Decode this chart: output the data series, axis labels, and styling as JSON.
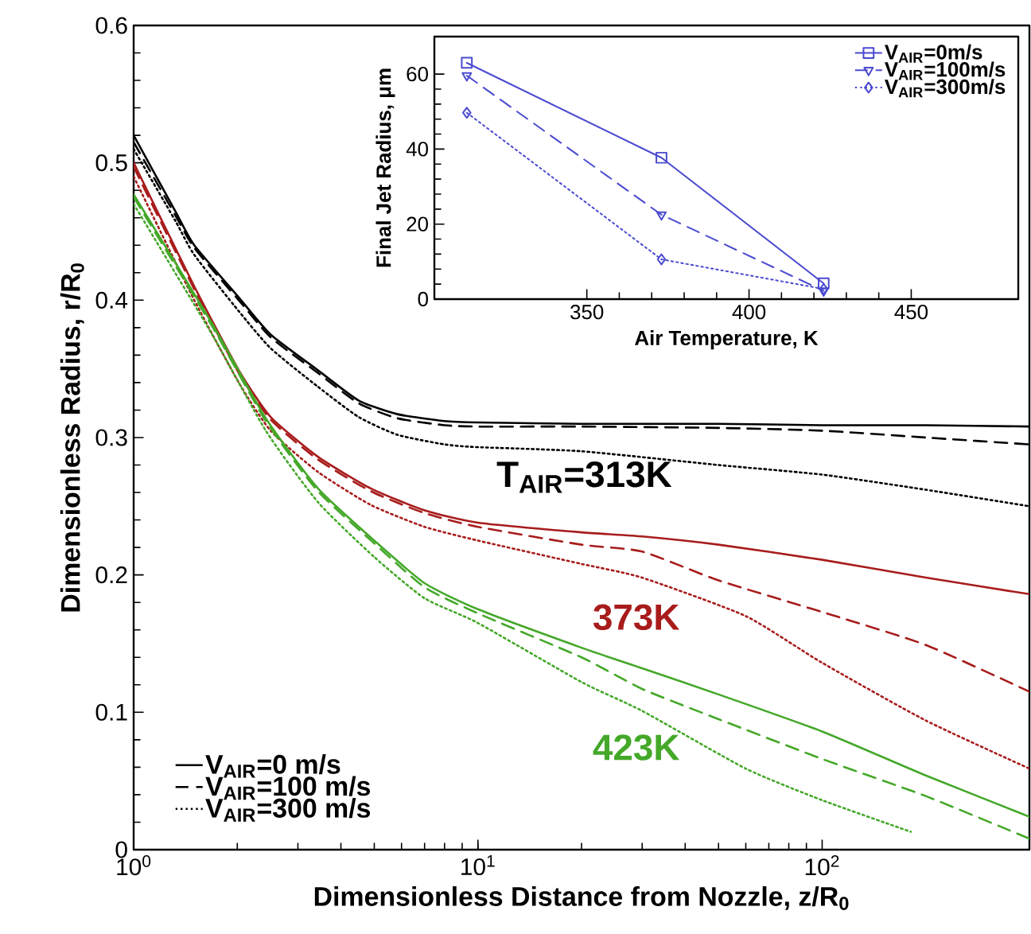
{
  "chart_data": [
    {
      "type": "line",
      "xlabel": "Dimensionless Distance from Nozzle, z/R$_{0}$",
      "ylabel": "Dimensionless Radius, r/R$_{0}$",
      "log": "x",
      "xlim": [
        1,
        400
      ],
      "ylim": [
        0,
        0.6
      ],
      "xticks": [
        {
          "value": 1,
          "label": "10$^{0}$"
        },
        {
          "value": 10,
          "label": "10$^{1}$"
        },
        {
          "value": 100,
          "label": "10$^{2}$"
        }
      ],
      "yticks": [
        0,
        0.1,
        0.2,
        0.3,
        0.4,
        0.5,
        0.6
      ],
      "legend": "bottom left",
      "annotations": [
        "T$_{AIR}$=313K",
        "373K",
        "423K"
      ],
      "series": [
        {
          "name": "V$_{AIR}$=0 m/s",
          "color": "#000000",
          "line_style": "solid",
          "x": [
            1,
            1.32,
            1.5,
            2.02,
            2.5,
            3.43,
            4.5,
            5.84,
            8,
            10,
            20,
            50,
            100,
            200,
            400
          ],
          "values": [
            0.52,
            0.465,
            0.44,
            0.402,
            0.375,
            0.349,
            0.327,
            0.317,
            0.312,
            0.311,
            0.31,
            0.31,
            0.309,
            0.309,
            0.308
          ]
        },
        {
          "name": "V$_{AIR}$=100 m/s",
          "color": "#000000",
          "line_style": "dashed",
          "x": [
            1,
            1.32,
            1.5,
            2.02,
            2.5,
            3.43,
            4.5,
            5.84,
            8,
            10,
            20,
            50,
            100,
            200,
            400
          ],
          "values": [
            0.515,
            0.462,
            0.438,
            0.4,
            0.373,
            0.347,
            0.325,
            0.314,
            0.309,
            0.308,
            0.308,
            0.307,
            0.305,
            0.3,
            0.295
          ]
        },
        {
          "name": "V$_{AIR}$=300 m/s",
          "color": "#000000",
          "line_style": "dotted",
          "x": [
            1,
            1.32,
            1.5,
            2.02,
            2.5,
            3.43,
            4.5,
            5.84,
            8,
            10,
            20,
            50,
            100,
            200,
            400
          ],
          "values": [
            0.51,
            0.458,
            0.433,
            0.392,
            0.365,
            0.337,
            0.315,
            0.302,
            0.295,
            0.293,
            0.29,
            0.28,
            0.273,
            0.262,
            0.25
          ]
        },
        {
          "color": "#a81c1c",
          "line_style": "solid",
          "x": [
            1,
            1.5,
            2.02,
            2.5,
            3.43,
            4.88,
            7,
            10,
            20,
            30,
            50,
            100,
            200,
            400
          ],
          "values": [
            0.5,
            0.41,
            0.349,
            0.315,
            0.286,
            0.263,
            0.247,
            0.238,
            0.231,
            0.228,
            0.222,
            0.211,
            0.198,
            0.186
          ]
        },
        {
          "color": "#a81c1c",
          "line_style": "dashed",
          "x": [
            1,
            1.5,
            2.02,
            2.5,
            3.43,
            4.88,
            7,
            10,
            20,
            30,
            50,
            100,
            200,
            400
          ],
          "values": [
            0.497,
            0.408,
            0.347,
            0.313,
            0.284,
            0.261,
            0.245,
            0.235,
            0.222,
            0.217,
            0.196,
            0.173,
            0.149,
            0.115
          ]
        },
        {
          "color": "#a81c1c",
          "line_style": "dotted",
          "x": [
            1,
            1.5,
            2.02,
            2.5,
            3.43,
            4.88,
            7,
            10,
            20,
            30,
            60,
            100,
            200,
            400
          ],
          "values": [
            0.49,
            0.4,
            0.34,
            0.305,
            0.275,
            0.251,
            0.235,
            0.225,
            0.208,
            0.198,
            0.17,
            0.136,
            0.094,
            0.059
          ]
        },
        {
          "color": "#44a829",
          "line_style": "solid",
          "x": [
            1,
            1.69,
            2.42,
            3.43,
            5,
            7,
            10,
            20,
            30,
            50,
            100,
            200,
            400
          ],
          "values": [
            0.477,
            0.383,
            0.314,
            0.263,
            0.225,
            0.194,
            0.175,
            0.147,
            0.132,
            0.113,
            0.086,
            0.054,
            0.024
          ]
        },
        {
          "color": "#44a829",
          "line_style": "dashed",
          "x": [
            1,
            1.69,
            2.42,
            3.43,
            5,
            7,
            10,
            20,
            30,
            50,
            100,
            200,
            400
          ],
          "values": [
            0.475,
            0.381,
            0.312,
            0.261,
            0.223,
            0.191,
            0.172,
            0.14,
            0.117,
            0.095,
            0.066,
            0.039,
            0.008
          ]
        },
        {
          "color": "#44a829",
          "line_style": "dotted",
          "x": [
            1,
            1.69,
            2.42,
            3.43,
            5,
            7,
            10,
            20,
            30,
            60,
            100,
            181
          ],
          "values": [
            0.47,
            0.375,
            0.305,
            0.253,
            0.213,
            0.183,
            0.165,
            0.122,
            0.101,
            0.059,
            0.036,
            0.013
          ]
        }
      ]
    },
    {
      "type": "line",
      "xlabel": "Air Temperature, K",
      "ylabel": "Final Jet Radius, μm",
      "xlim": [
        303,
        483
      ],
      "ylim": [
        0,
        70
      ],
      "xticks": [
        350,
        400,
        450
      ],
      "yticks": [
        0,
        20,
        40,
        60
      ],
      "legend": "top right",
      "x": [
        313,
        373,
        423
      ],
      "series": [
        {
          "name": "V$_{AIR}$=0m/s",
          "color": "#4a4ad0",
          "line_style": "solid",
          "marker": "square",
          "values": [
            63,
            37.7,
            4.2
          ]
        },
        {
          "name": "V$_{AIR}$=100m/s",
          "color": "#4a4ad0",
          "line_style": "dashed",
          "marker": "triangle",
          "values": [
            59.6,
            22.5,
            2.2
          ]
        },
        {
          "name": "V$_{AIR}$=300m/s",
          "color": "#4a4ad0",
          "line_style": "dotted",
          "marker": "diamond",
          "values": [
            49.7,
            10.6,
            2.7
          ]
        }
      ]
    }
  ]
}
